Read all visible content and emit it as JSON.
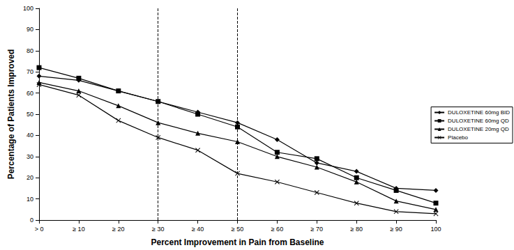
{
  "chart_data": {
    "type": "line",
    "x_label": "Percent Improvement in Pain from Baseline",
    "y_label": "Percentage of Patients Improved",
    "categories": [
      "> 0",
      "≥ 10",
      "≥ 20",
      "≥ 30",
      "≥ 40",
      "≥ 50",
      "≥ 60",
      "≥ 70",
      "≥ 80",
      "≥ 90",
      "100"
    ],
    "series": [
      {
        "name": "DULOXETINE 60mg BID",
        "color": "#000000",
        "marker": "diamond",
        "values": [
          68,
          66,
          61,
          56,
          51,
          46,
          38,
          27,
          23,
          15,
          14
        ]
      },
      {
        "name": "DULOXETINE 60mg QD",
        "color": "#000000",
        "marker": "square",
        "values": [
          72,
          67,
          61,
          56,
          50,
          44,
          32,
          29,
          20,
          14,
          8
        ]
      },
      {
        "name": "DULOXETINE 20mg QD",
        "color": "#000000",
        "marker": "triangle",
        "values": [
          65,
          61,
          54,
          46,
          41,
          37,
          30,
          25,
          18,
          9,
          5
        ]
      },
      {
        "name": "Placebo",
        "color": "#000000",
        "marker": "x",
        "values": [
          64,
          59,
          47,
          39,
          33,
          22,
          18,
          13,
          8,
          4,
          3
        ]
      }
    ],
    "reference_lines": [
      "≥ 30",
      "≥ 50"
    ],
    "ylim": [
      0,
      100
    ],
    "yticks": [
      0,
      10,
      20,
      30,
      40,
      50,
      60,
      70,
      80,
      90,
      100
    ],
    "grid": false,
    "legend": "right"
  }
}
